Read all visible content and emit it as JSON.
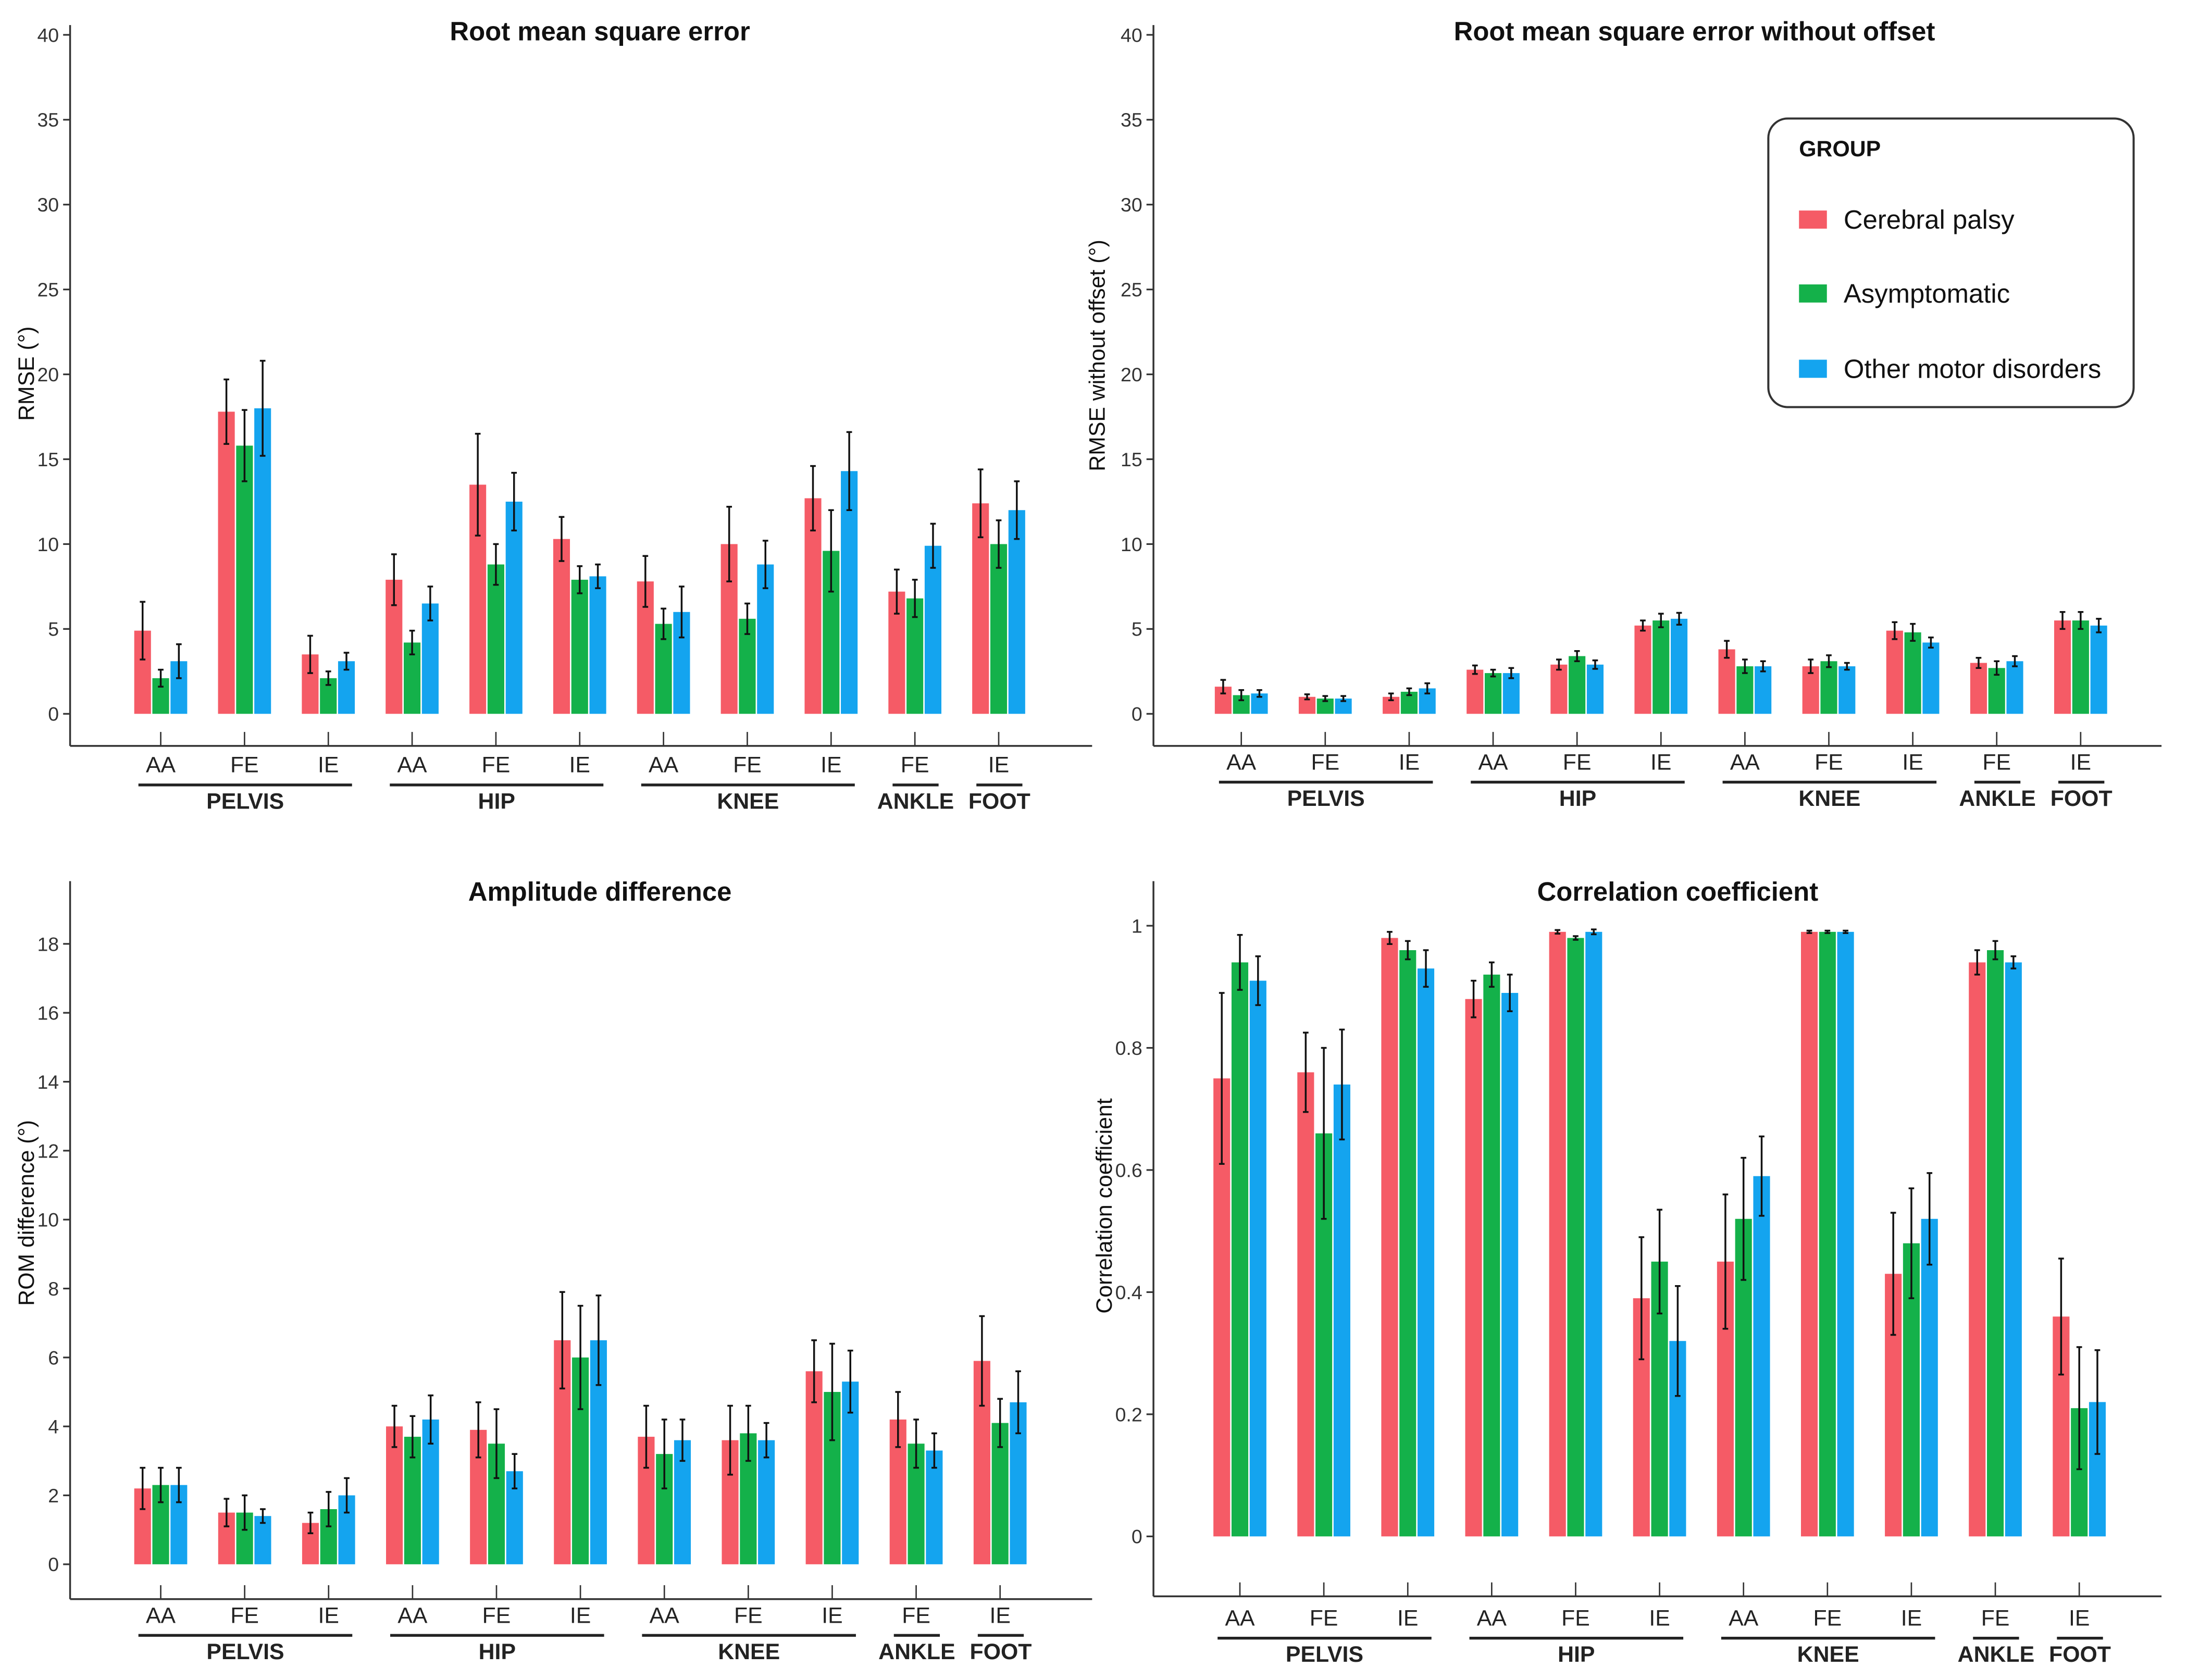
{
  "colors": {
    "Cerebral palsy": "#f55b66",
    "Asymptomatic": "#14b14a",
    "Other motor disorders": "#14a4ef"
  },
  "legend": {
    "title": "GROUP",
    "items": [
      "Cerebral palsy",
      "Asymptomatic",
      "Other motor disorders"
    ],
    "placement": "top-right of RMSE without offset panel"
  },
  "chart_data": [
    {
      "type": "bar",
      "title": "Root mean square error",
      "ylabel": "RMSE (°)",
      "ylim": [
        0,
        40
      ],
      "yticks": [
        "0",
        "5",
        "10",
        "15",
        "20",
        "25",
        "30",
        "35",
        "40"
      ],
      "categories": [
        "AA",
        "FE",
        "IE",
        "AA",
        "FE",
        "IE",
        "AA",
        "FE",
        "IE",
        "FE",
        "IE"
      ],
      "groups": [
        {
          "label": "PELVIS",
          "from": 0,
          "to": 2
        },
        {
          "label": "HIP",
          "from": 3,
          "to": 5
        },
        {
          "label": "KNEE",
          "from": 6,
          "to": 8
        },
        {
          "label": "ANKLE",
          "from": 9,
          "to": 9
        },
        {
          "label": "FOOT",
          "from": 10,
          "to": 10
        }
      ],
      "series": [
        {
          "name": "Cerebral palsy",
          "values": [
            4.9,
            17.8,
            3.5,
            7.9,
            13.5,
            10.3,
            7.8,
            10.0,
            12.7,
            7.2,
            12.4
          ],
          "errors": [
            1.7,
            1.9,
            1.1,
            1.5,
            3.0,
            1.3,
            1.5,
            2.2,
            1.9,
            1.3,
            2.0
          ]
        },
        {
          "name": "Asymptomatic",
          "values": [
            2.1,
            15.8,
            2.1,
            4.2,
            8.8,
            7.9,
            5.3,
            5.6,
            9.6,
            6.8,
            10.0
          ],
          "errors": [
            0.5,
            2.1,
            0.4,
            0.7,
            1.2,
            0.8,
            0.9,
            0.9,
            2.4,
            1.1,
            1.4
          ]
        },
        {
          "name": "Other motor disorders",
          "values": [
            3.1,
            18.0,
            3.1,
            6.5,
            12.5,
            8.1,
            6.0,
            8.8,
            14.3,
            9.9,
            12.0
          ],
          "errors": [
            1.0,
            2.8,
            0.5,
            1.0,
            1.7,
            0.7,
            1.5,
            1.4,
            2.3,
            1.3,
            1.7
          ]
        }
      ]
    },
    {
      "type": "bar",
      "title": "Root mean square error without offset",
      "ylabel": "RMSE without offset (°)",
      "ylim": [
        0,
        40
      ],
      "yticks": [
        "0",
        "5",
        "10",
        "15",
        "20",
        "25",
        "30",
        "35",
        "40"
      ],
      "categories": [
        "AA",
        "FE",
        "IE",
        "AA",
        "FE",
        "IE",
        "AA",
        "FE",
        "IE",
        "FE",
        "IE"
      ],
      "groups": [
        {
          "label": "PELVIS",
          "from": 0,
          "to": 2
        },
        {
          "label": "HIP",
          "from": 3,
          "to": 5
        },
        {
          "label": "KNEE",
          "from": 6,
          "to": 8
        },
        {
          "label": "ANKLE",
          "from": 9,
          "to": 9
        },
        {
          "label": "FOOT",
          "from": 10,
          "to": 10
        }
      ],
      "series": [
        {
          "name": "Cerebral palsy",
          "values": [
            1.6,
            1.0,
            1.0,
            2.6,
            2.9,
            5.2,
            3.8,
            2.8,
            4.9,
            3.0,
            5.5
          ],
          "errors": [
            0.4,
            0.15,
            0.2,
            0.25,
            0.3,
            0.3,
            0.5,
            0.4,
            0.5,
            0.3,
            0.5
          ]
        },
        {
          "name": "Asymptomatic",
          "values": [
            1.1,
            0.9,
            1.3,
            2.4,
            3.4,
            5.5,
            2.8,
            3.1,
            4.8,
            2.7,
            5.5
          ],
          "errors": [
            0.3,
            0.15,
            0.2,
            0.2,
            0.3,
            0.4,
            0.4,
            0.35,
            0.5,
            0.4,
            0.5
          ]
        },
        {
          "name": "Other motor disorders",
          "values": [
            1.2,
            0.9,
            1.5,
            2.4,
            2.9,
            5.6,
            2.8,
            2.8,
            4.2,
            3.1,
            5.2
          ],
          "errors": [
            0.2,
            0.15,
            0.3,
            0.3,
            0.25,
            0.35,
            0.3,
            0.2,
            0.3,
            0.3,
            0.4
          ]
        }
      ]
    },
    {
      "type": "bar",
      "title": "Amplitude difference",
      "ylabel": "ROM difference (°)",
      "ylim": [
        0,
        19
      ],
      "yticks": [
        "0",
        "2",
        "4",
        "6",
        "8",
        "10",
        "12",
        "14",
        "16",
        "18"
      ],
      "categories": [
        "AA",
        "FE",
        "IE",
        "AA",
        "FE",
        "IE",
        "AA",
        "FE",
        "IE",
        "FE",
        "IE"
      ],
      "groups": [
        {
          "label": "PELVIS",
          "from": 0,
          "to": 2
        },
        {
          "label": "HIP",
          "from": 3,
          "to": 5
        },
        {
          "label": "KNEE",
          "from": 6,
          "to": 8
        },
        {
          "label": "ANKLE",
          "from": 9,
          "to": 9
        },
        {
          "label": "FOOT",
          "from": 10,
          "to": 10
        }
      ],
      "series": [
        {
          "name": "Cerebral palsy",
          "values": [
            2.2,
            1.5,
            1.2,
            4.0,
            3.9,
            6.5,
            3.7,
            3.6,
            5.6,
            4.2,
            5.9
          ],
          "errors": [
            0.6,
            0.4,
            0.3,
            0.6,
            0.8,
            1.4,
            0.9,
            1.0,
            0.9,
            0.8,
            1.3
          ]
        },
        {
          "name": "Asymptomatic",
          "values": [
            2.3,
            1.5,
            1.6,
            3.7,
            3.5,
            6.0,
            3.2,
            3.8,
            5.0,
            3.5,
            4.1
          ],
          "errors": [
            0.5,
            0.5,
            0.5,
            0.6,
            1.0,
            1.5,
            1.0,
            0.8,
            1.4,
            0.7,
            0.7
          ]
        },
        {
          "name": "Other motor disorders",
          "values": [
            2.3,
            1.4,
            2.0,
            4.2,
            2.7,
            6.5,
            3.6,
            3.6,
            5.3,
            3.3,
            4.7
          ],
          "errors": [
            0.5,
            0.2,
            0.5,
            0.7,
            0.5,
            1.3,
            0.6,
            0.5,
            0.9,
            0.5,
            0.9
          ]
        }
      ]
    },
    {
      "type": "bar",
      "title": "Correlation coefficient",
      "ylabel": "Correlation coefficient",
      "ylim": [
        0,
        1
      ],
      "yticks": [
        "0",
        "0.2",
        "0.4",
        "0.6",
        "0.8",
        "1"
      ],
      "categories": [
        "AA",
        "FE",
        "IE",
        "AA",
        "FE",
        "IE",
        "AA",
        "FE",
        "IE",
        "FE",
        "IE"
      ],
      "groups": [
        {
          "label": "PELVIS",
          "from": 0,
          "to": 2
        },
        {
          "label": "HIP",
          "from": 3,
          "to": 5
        },
        {
          "label": "KNEE",
          "from": 6,
          "to": 8
        },
        {
          "label": "ANKLE",
          "from": 9,
          "to": 9
        },
        {
          "label": "FOOT",
          "from": 10,
          "to": 10
        }
      ],
      "series": [
        {
          "name": "Cerebral palsy",
          "values": [
            0.75,
            0.76,
            0.98,
            0.88,
            0.99,
            0.39,
            0.45,
            0.99,
            0.43,
            0.94,
            0.36
          ],
          "errors": [
            0.14,
            0.065,
            0.01,
            0.03,
            0.003,
            0.1,
            0.11,
            0.002,
            0.1,
            0.02,
            0.095
          ]
        },
        {
          "name": "Asymptomatic",
          "values": [
            0.94,
            0.66,
            0.96,
            0.92,
            0.98,
            0.45,
            0.52,
            0.99,
            0.48,
            0.96,
            0.21
          ],
          "errors": [
            0.045,
            0.14,
            0.015,
            0.02,
            0.003,
            0.085,
            0.1,
            0.002,
            0.09,
            0.015,
            0.1
          ]
        },
        {
          "name": "Other motor disorders",
          "values": [
            0.91,
            0.74,
            0.93,
            0.89,
            0.99,
            0.32,
            0.59,
            0.99,
            0.52,
            0.94,
            0.22
          ],
          "errors": [
            0.04,
            0.09,
            0.03,
            0.03,
            0.004,
            0.09,
            0.065,
            0.002,
            0.075,
            0.01,
            0.085
          ]
        }
      ]
    }
  ]
}
